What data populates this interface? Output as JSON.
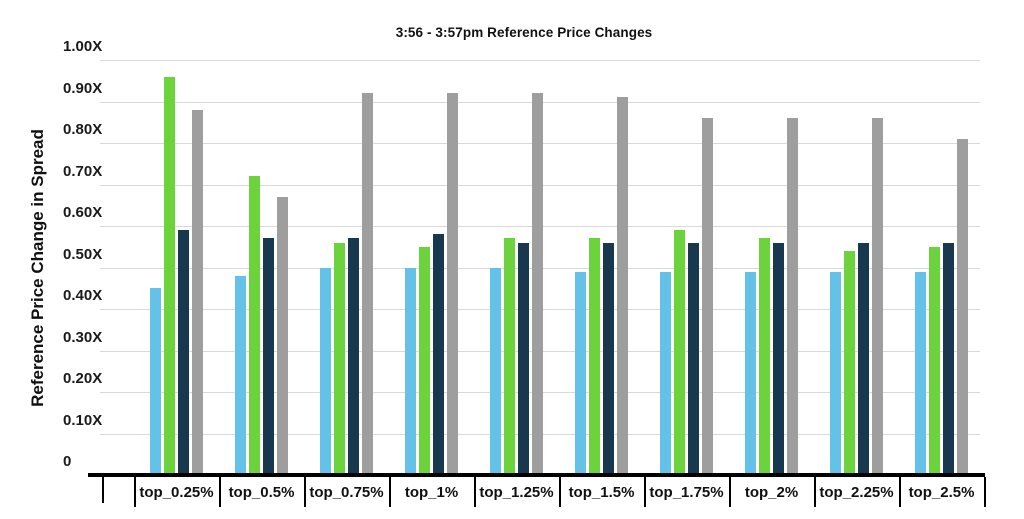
{
  "title": "3:56 - 3:57pm Reference Price Changes",
  "chart_data": {
    "type": "bar",
    "title": "3:56 - 3:57pm Reference Price Changes",
    "xlabel": "",
    "ylabel": "Reference Price Change in Spread",
    "ylim": [
      0,
      1.0
    ],
    "grid": true,
    "legend_position": "none",
    "y_ticks": [
      {
        "value": 1.0,
        "label": "1.00X"
      },
      {
        "value": 0.9,
        "label": "0.90X"
      },
      {
        "value": 0.8,
        "label": "0.80X"
      },
      {
        "value": 0.7,
        "label": "0.70X"
      },
      {
        "value": 0.6,
        "label": "0.60X"
      },
      {
        "value": 0.5,
        "label": "0.50X"
      },
      {
        "value": 0.4,
        "label": "0.40X"
      },
      {
        "value": 0.3,
        "label": "0.30X"
      },
      {
        "value": 0.2,
        "label": "0.20X"
      },
      {
        "value": 0.1,
        "label": "0.10X"
      },
      {
        "value": 0.0,
        "label": "0"
      }
    ],
    "categories": [
      "top_0.25%",
      "top_0.5%",
      "top_0.75%",
      "top_1%",
      "top_1.25%",
      "top_1.5%",
      "top_1.75%",
      "top_2%",
      "top_2.25%",
      "top_2.5%"
    ],
    "series": [
      {
        "name": "light-blue",
        "color": "#64C1E8",
        "values": [
          0.45,
          0.48,
          0.5,
          0.5,
          0.5,
          0.49,
          0.49,
          0.49,
          0.49,
          0.49
        ]
      },
      {
        "name": "green",
        "color": "#6CD33C",
        "values": [
          0.96,
          0.72,
          0.56,
          0.55,
          0.57,
          0.57,
          0.59,
          0.57,
          0.54,
          0.55
        ]
      },
      {
        "name": "dark-navy",
        "color": "#17384E",
        "values": [
          0.59,
          0.57,
          0.57,
          0.58,
          0.56,
          0.56,
          0.56,
          0.56,
          0.56,
          0.56
        ]
      },
      {
        "name": "gray",
        "color": "#9E9E9E",
        "values": [
          0.88,
          0.67,
          0.92,
          0.92,
          0.92,
          0.91,
          0.86,
          0.86,
          0.86,
          0.81
        ]
      }
    ],
    "colors": {
      "gridline": "#D9D9D9",
      "axis": "#000000",
      "text": "#111111"
    }
  }
}
